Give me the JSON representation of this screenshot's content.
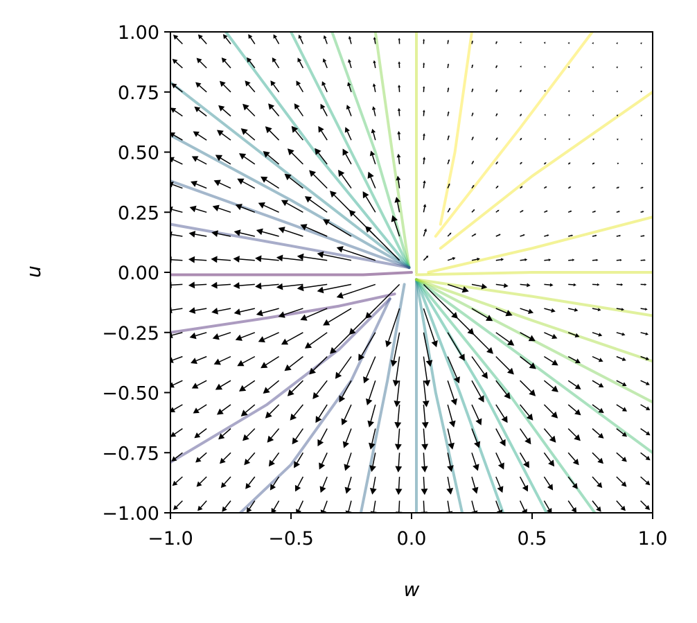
{
  "chart_data": {
    "type": "quiver",
    "xlabel": "w",
    "ylabel": "u",
    "xlim": [
      -1.0,
      1.0
    ],
    "ylim": [
      -1.0,
      1.0
    ],
    "grid": false,
    "x_ticks": [
      -1.0,
      -0.5,
      0.0,
      0.5,
      1.0
    ],
    "x_tick_labels": [
      "−1.0",
      "−0.5",
      "0.0",
      "0.5",
      "1.0"
    ],
    "y_ticks": [
      -1.0,
      -0.75,
      -0.5,
      -0.25,
      0.0,
      0.25,
      0.5,
      0.75,
      1.0
    ],
    "y_tick_labels": [
      "−1.00",
      "−0.75",
      "−0.50",
      "−0.25",
      "0.00",
      "0.25",
      "0.50",
      "0.75",
      "1.00"
    ],
    "vector_field": {
      "grid_range": [
        -0.95,
        0.95
      ],
      "grid_step": 0.1,
      "color": "#000000",
      "description_field": "arrows point away from origin, magnitude larger for w<0 and u<0"
    },
    "colormap": "viridis",
    "trajectories": [
      {
        "color": "#440154",
        "points": [
          [
            0.0,
            0.0
          ],
          [
            -0.2,
            -0.01
          ],
          [
            -0.5,
            -0.01
          ],
          [
            -1.0,
            -0.01
          ]
        ]
      },
      {
        "color": "#482173",
        "points": [
          [
            -0.07,
            -0.09
          ],
          [
            -0.3,
            -0.14
          ],
          [
            -0.6,
            -0.19
          ],
          [
            -1.0,
            -0.25
          ]
        ]
      },
      {
        "color": "#433e85",
        "points": [
          [
            -0.09,
            -0.11
          ],
          [
            -0.3,
            -0.32
          ],
          [
            -0.6,
            -0.55
          ],
          [
            -1.0,
            -0.79
          ]
        ]
      },
      {
        "color": "#3b528b",
        "points": [
          [
            -0.09,
            -0.11
          ],
          [
            -0.25,
            -0.45
          ],
          [
            -0.5,
            -0.8
          ],
          [
            -0.71,
            -1.0
          ]
        ]
      },
      {
        "color": "#31688e",
        "points": [
          [
            -0.03,
            -0.05
          ],
          [
            -0.1,
            -0.45
          ],
          [
            -0.21,
            -1.0
          ]
        ]
      },
      {
        "color": "#2a788e",
        "points": [
          [
            0.02,
            -0.03
          ],
          [
            0.02,
            -0.5
          ],
          [
            0.02,
            -1.0
          ]
        ]
      },
      {
        "color": "#23888e",
        "points": [
          [
            0.02,
            -0.03
          ],
          [
            0.1,
            -0.5
          ],
          [
            0.21,
            -1.0
          ]
        ]
      },
      {
        "color": "#1f988b",
        "points": [
          [
            0.02,
            -0.03
          ],
          [
            0.2,
            -0.5
          ],
          [
            0.38,
            -1.0
          ]
        ]
      },
      {
        "color": "#22a884",
        "points": [
          [
            0.02,
            -0.03
          ],
          [
            0.3,
            -0.5
          ],
          [
            0.56,
            -1.0
          ]
        ]
      },
      {
        "color": "#35b779",
        "points": [
          [
            0.02,
            -0.03
          ],
          [
            0.4,
            -0.5
          ],
          [
            0.76,
            -1.0
          ]
        ]
      },
      {
        "color": "#44bf70",
        "points": [
          [
            0.02,
            -0.03
          ],
          [
            0.5,
            -0.38
          ],
          [
            1.0,
            -0.75
          ]
        ]
      },
      {
        "color": "#7ad151",
        "points": [
          [
            0.02,
            -0.03
          ],
          [
            0.5,
            -0.28
          ],
          [
            1.0,
            -0.54
          ]
        ]
      },
      {
        "color": "#a5db36",
        "points": [
          [
            0.02,
            -0.03
          ],
          [
            0.5,
            -0.2
          ],
          [
            1.0,
            -0.37
          ]
        ]
      },
      {
        "color": "#bddf26",
        "points": [
          [
            0.02,
            -0.03
          ],
          [
            0.5,
            -0.1
          ],
          [
            1.0,
            -0.18
          ]
        ]
      },
      {
        "color": "#d2e21b",
        "points": [
          [
            0.02,
            -0.01
          ],
          [
            0.5,
            0.0
          ],
          [
            1.0,
            0.0
          ]
        ]
      },
      {
        "color": "#e5e419",
        "points": [
          [
            0.07,
            0.0
          ],
          [
            0.5,
            0.1
          ],
          [
            1.0,
            0.23
          ]
        ]
      },
      {
        "color": "#f1e51d",
        "points": [
          [
            0.12,
            0.1
          ],
          [
            0.5,
            0.4
          ],
          [
            1.0,
            0.75
          ]
        ]
      },
      {
        "color": "#fde725",
        "points": [
          [
            0.1,
            0.15
          ],
          [
            0.45,
            0.6
          ],
          [
            0.75,
            1.0
          ]
        ]
      },
      {
        "color": "#fde725",
        "points": [
          [
            0.12,
            0.2
          ],
          [
            0.18,
            0.5
          ],
          [
            0.25,
            1.0
          ]
        ]
      },
      {
        "color": "#c2df23",
        "points": [
          [
            0.02,
            0.0
          ],
          [
            0.02,
            0.5
          ],
          [
            0.02,
            1.0
          ]
        ]
      },
      {
        "color": "#86d549",
        "points": [
          [
            -0.01,
            0.02
          ],
          [
            -0.08,
            0.5
          ],
          [
            -0.15,
            1.0
          ]
        ]
      },
      {
        "color": "#52c569",
        "points": [
          [
            -0.01,
            0.02
          ],
          [
            -0.15,
            0.5
          ],
          [
            -0.33,
            1.0
          ]
        ]
      },
      {
        "color": "#2ab07f",
        "points": [
          [
            -0.01,
            0.02
          ],
          [
            -0.25,
            0.5
          ],
          [
            -0.5,
            1.0
          ]
        ]
      },
      {
        "color": "#1fa187",
        "points": [
          [
            -0.01,
            0.02
          ],
          [
            -0.4,
            0.5
          ],
          [
            -0.77,
            1.0
          ]
        ]
      },
      {
        "color": "#25858e",
        "points": [
          [
            -0.01,
            0.02
          ],
          [
            -0.5,
            0.4
          ],
          [
            -1.0,
            0.79
          ]
        ]
      },
      {
        "color": "#2c728e",
        "points": [
          [
            -0.01,
            0.02
          ],
          [
            -0.5,
            0.3
          ],
          [
            -1.0,
            0.57
          ]
        ]
      },
      {
        "color": "#355f8d",
        "points": [
          [
            -0.01,
            0.02
          ],
          [
            -0.5,
            0.2
          ],
          [
            -1.0,
            0.38
          ]
        ]
      },
      {
        "color": "#3e4989",
        "points": [
          [
            -0.01,
            0.02
          ],
          [
            -0.5,
            0.11
          ],
          [
            -1.0,
            0.2
          ]
        ]
      }
    ]
  }
}
